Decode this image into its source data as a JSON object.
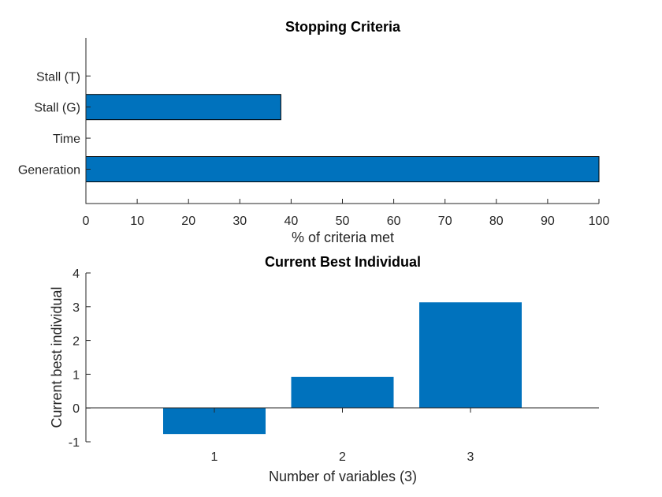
{
  "colors": {
    "bar": "#0072bd",
    "bar_edge": "#000000",
    "axis": "#262626",
    "background": "#ffffff"
  },
  "chart_data": [
    {
      "type": "bar",
      "orientation": "horizontal",
      "title": "Stopping Criteria",
      "xlabel": "% of criteria met",
      "ylabel": "",
      "categories": [
        "Generation",
        "Time",
        "Stall (G)",
        "Stall (T)"
      ],
      "values": [
        100,
        0,
        38,
        0
      ],
      "xlim": [
        0,
        100
      ],
      "xticks": [
        0,
        10,
        20,
        30,
        40,
        50,
        60,
        70,
        80,
        90,
        100
      ],
      "grid": false
    },
    {
      "type": "bar",
      "orientation": "vertical",
      "title": "Current Best Individual",
      "xlabel": "Number of variables (3)",
      "ylabel": "Current best individual",
      "categories": [
        "1",
        "2",
        "3"
      ],
      "values": [
        -0.77,
        0.92,
        3.13
      ],
      "ylim": [
        -1,
        4
      ],
      "yticks": [
        -1,
        0,
        1,
        2,
        3,
        4
      ],
      "grid": false
    }
  ]
}
